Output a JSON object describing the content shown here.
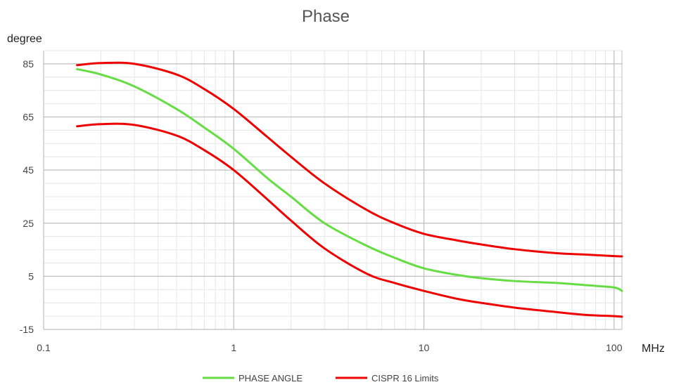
{
  "chart_data": {
    "type": "line",
    "title": "Phase",
    "ylabel": "degree",
    "xlabel": "MHz",
    "x_scale": "log",
    "xlim": [
      0.1,
      110
    ],
    "ylim": [
      -15,
      90
    ],
    "x_major_ticks": [
      0.1,
      1,
      10,
      100
    ],
    "x_tick_labels": [
      "0.1",
      "1",
      "10",
      "100"
    ],
    "y_ticks": [
      -15,
      5,
      25,
      45,
      65,
      85
    ],
    "y_tick_labels": [
      "-15",
      "5",
      "25",
      "45",
      "65",
      "85"
    ],
    "grid": true,
    "legend_position": "bottom",
    "series": [
      {
        "name": "PHASE ANGLE",
        "color": "#66dd44",
        "points": [
          [
            0.15,
            83
          ],
          [
            0.2,
            81
          ],
          [
            0.3,
            76.5
          ],
          [
            0.5,
            68
          ],
          [
            0.7,
            61
          ],
          [
            1,
            53
          ],
          [
            1.5,
            42
          ],
          [
            2,
            35
          ],
          [
            3,
            25
          ],
          [
            5,
            16.5
          ],
          [
            7,
            12
          ],
          [
            10,
            8
          ],
          [
            15,
            5.5
          ],
          [
            20,
            4.3
          ],
          [
            30,
            3.2
          ],
          [
            50,
            2.5
          ],
          [
            70,
            1.7
          ],
          [
            100,
            0.8
          ],
          [
            110,
            -0.5
          ]
        ]
      },
      {
        "name": "CISPR 16 Limits",
        "color": "#ee0000",
        "points": [
          [
            0.15,
            84.5
          ],
          [
            0.2,
            85.3
          ],
          [
            0.3,
            85
          ],
          [
            0.5,
            81
          ],
          [
            0.7,
            75.5
          ],
          [
            1,
            68
          ],
          [
            1.5,
            57.5
          ],
          [
            2,
            50
          ],
          [
            3,
            40
          ],
          [
            5,
            30
          ],
          [
            7,
            25
          ],
          [
            10,
            21
          ],
          [
            15,
            18.5
          ],
          [
            20,
            17
          ],
          [
            30,
            15.2
          ],
          [
            50,
            13.7
          ],
          [
            70,
            13.2
          ],
          [
            100,
            12.6
          ],
          [
            110,
            12.5
          ]
        ]
      },
      {
        "name": "",
        "color": "#ee0000",
        "points": [
          [
            0.15,
            61.5
          ],
          [
            0.2,
            62.3
          ],
          [
            0.3,
            62
          ],
          [
            0.5,
            58
          ],
          [
            0.7,
            52.5
          ],
          [
            1,
            45
          ],
          [
            1.5,
            34
          ],
          [
            2,
            26
          ],
          [
            3,
            15.5
          ],
          [
            5,
            6
          ],
          [
            7,
            2.5
          ],
          [
            10,
            -0.5
          ],
          [
            15,
            -3.5
          ],
          [
            20,
            -5
          ],
          [
            30,
            -6.8
          ],
          [
            50,
            -8.5
          ],
          [
            70,
            -9.5
          ],
          [
            100,
            -10
          ],
          [
            110,
            -10.2
          ]
        ]
      }
    ]
  }
}
